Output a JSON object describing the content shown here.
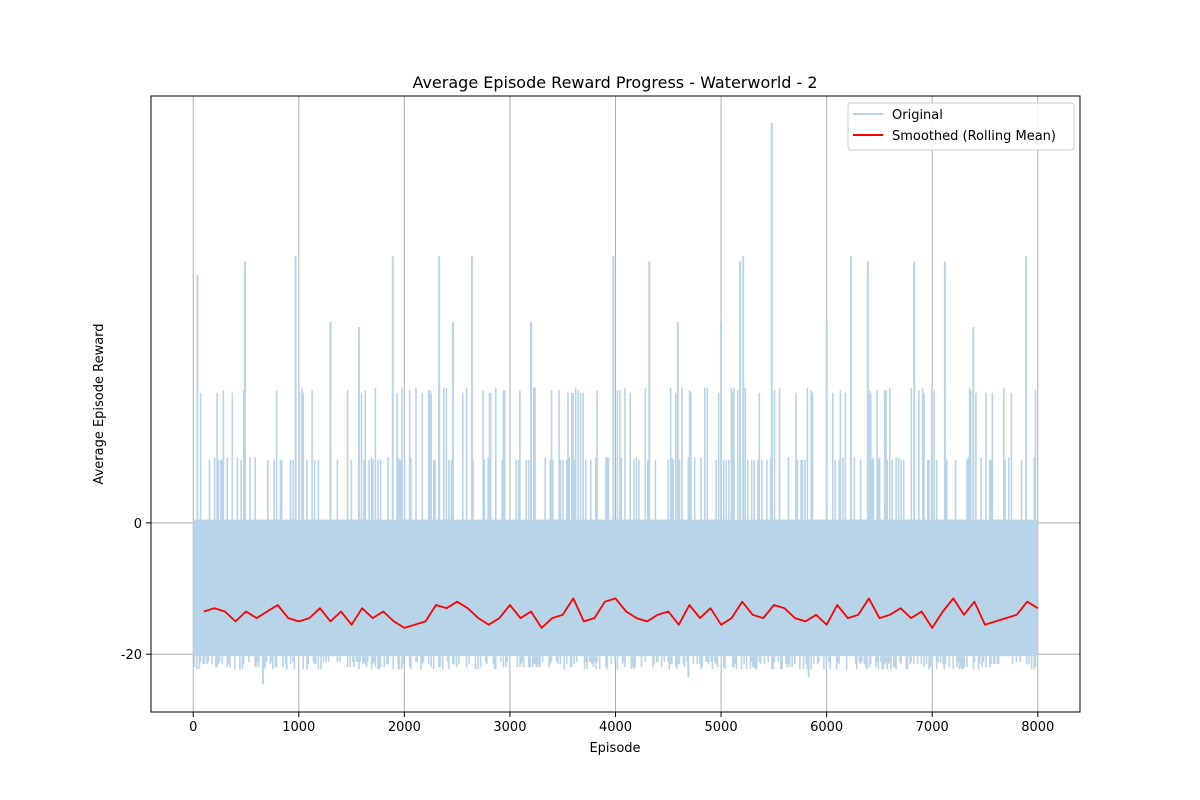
{
  "chart_data": {
    "type": "line",
    "title": "Average Episode Reward Progress - Waterworld - 2",
    "xlabel": "Episode",
    "ylabel": "Average Episode Reward",
    "xlim": [
      -400,
      8400
    ],
    "ylim": [
      -28.8,
      65
    ],
    "x_ticks": [
      0,
      1000,
      2000,
      3000,
      4000,
      5000,
      6000,
      7000,
      8000
    ],
    "y_ticks": [
      -20,
      0
    ],
    "grid": true,
    "legend": {
      "position": "top-right",
      "entries": [
        "Original",
        "Smoothed (Rolling Mean)"
      ]
    },
    "series": [
      {
        "name": "Original",
        "color": "#b8d4e8",
        "episodes": [
          0,
          8000
        ],
        "typical_low": -20.3,
        "typical_high": 0.5,
        "approx_extremes": [
          {
            "x": 40,
            "y": 37.8
          },
          {
            "x": 490,
            "y": 39.8
          },
          {
            "x": 970,
            "y": 40.6
          },
          {
            "x": 1300,
            "y": 30.6
          },
          {
            "x": 1570,
            "y": 29.8
          },
          {
            "x": 1890,
            "y": 40.6
          },
          {
            "x": 2330,
            "y": 40.6
          },
          {
            "x": 2460,
            "y": 30.6
          },
          {
            "x": 2640,
            "y": 40.6
          },
          {
            "x": 3200,
            "y": 30.6
          },
          {
            "x": 3980,
            "y": 40.6
          },
          {
            "x": 4320,
            "y": 39.8
          },
          {
            "x": 4590,
            "y": 30.6
          },
          {
            "x": 5000,
            "y": 30.6
          },
          {
            "x": 5180,
            "y": 39.8
          },
          {
            "x": 5210,
            "y": 40.6
          },
          {
            "x": 5480,
            "y": 60.9
          },
          {
            "x": 6000,
            "y": 30.6
          },
          {
            "x": 6230,
            "y": 40.6
          },
          {
            "x": 6390,
            "y": 39.8
          },
          {
            "x": 6830,
            "y": 39.8
          },
          {
            "x": 7120,
            "y": 39.8
          },
          {
            "x": 7390,
            "y": 29.8
          },
          {
            "x": 7890,
            "y": 40.6
          },
          {
            "x": 660,
            "y": -24.6
          },
          {
            "x": 4690,
            "y": -23.5
          },
          {
            "x": 5830,
            "y": -23.5
          }
        ]
      },
      {
        "name": "Smoothed (Rolling Mean)",
        "color": "#ff0000",
        "x": [
          100,
          200,
          300,
          400,
          500,
          600,
          700,
          800,
          900,
          1000,
          1100,
          1200,
          1300,
          1400,
          1500,
          1600,
          1700,
          1800,
          1900,
          2000,
          2100,
          2200,
          2300,
          2400,
          2500,
          2600,
          2700,
          2800,
          2900,
          3000,
          3100,
          3200,
          3300,
          3400,
          3500,
          3600,
          3700,
          3800,
          3900,
          4000,
          4100,
          4200,
          4300,
          4400,
          4500,
          4600,
          4700,
          4800,
          4900,
          5000,
          5100,
          5200,
          5300,
          5400,
          5500,
          5600,
          5700,
          5800,
          5900,
          6000,
          6100,
          6200,
          6300,
          6400,
          6500,
          6600,
          6700,
          6800,
          6900,
          7000,
          7100,
          7200,
          7300,
          7400,
          7500,
          7600,
          7700,
          7800,
          7900,
          8000
        ],
        "y": [
          -13.5,
          -13.0,
          -13.5,
          -15.0,
          -13.5,
          -14.5,
          -13.5,
          -12.5,
          -14.5,
          -15.0,
          -14.5,
          -13.0,
          -15.0,
          -13.5,
          -15.5,
          -13.0,
          -14.5,
          -13.5,
          -15.0,
          -16.0,
          -15.5,
          -15.0,
          -12.5,
          -13.0,
          -12.0,
          -13.0,
          -14.5,
          -15.5,
          -14.5,
          -12.5,
          -14.5,
          -13.5,
          -16.0,
          -14.5,
          -14.0,
          -11.5,
          -15.0,
          -14.5,
          -12.0,
          -11.5,
          -13.5,
          -14.5,
          -15.0,
          -14.0,
          -13.5,
          -15.5,
          -12.5,
          -14.5,
          -13.0,
          -15.5,
          -14.5,
          -12.0,
          -14.0,
          -14.5,
          -12.5,
          -13.0,
          -14.5,
          -15.0,
          -14.0,
          -15.5,
          -12.5,
          -14.5,
          -14.0,
          -11.5,
          -14.5,
          -14.0,
          -13.0,
          -14.5,
          -13.5,
          -16.0,
          -13.5,
          -11.5,
          -14.0,
          -12.0,
          -15.5,
          -15.0,
          -14.5,
          -14.0,
          -12.0,
          -13.0
        ]
      }
    ]
  }
}
